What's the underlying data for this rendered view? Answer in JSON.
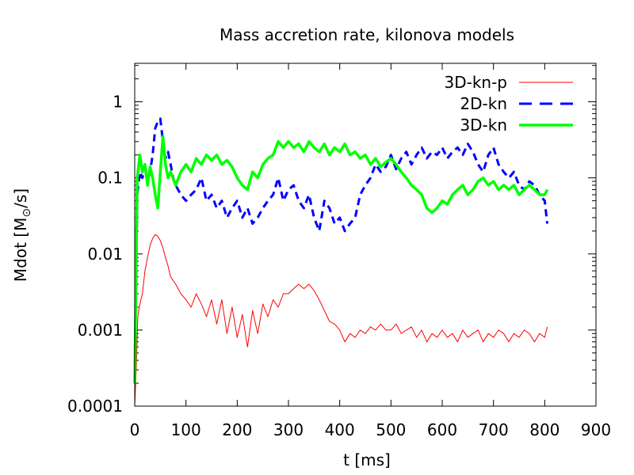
{
  "chart_data": {
    "type": "line",
    "title": "Mass accretion rate, kilonova models",
    "xlabel": "t [ms]",
    "ylabel_prefix": "Mdot [M",
    "ylabel_sub": "⊙",
    "ylabel_suffix": "/s]",
    "xscale": "linear",
    "yscale": "log",
    "xlim": [
      0,
      900
    ],
    "ylim": [
      0.0001,
      3.2
    ],
    "xticks": [
      0,
      100,
      200,
      300,
      400,
      500,
      600,
      700,
      800,
      900
    ],
    "yticks": [
      0.0001,
      0.001,
      0.01,
      0.1,
      1
    ],
    "xtick_labels": [
      "0",
      "100",
      "200",
      "300",
      "400",
      "500",
      "600",
      "700",
      "800",
      "900"
    ],
    "ytick_labels": [
      "0.0001",
      "0.001",
      "0.01",
      "0.1",
      "1"
    ],
    "legend_position": "top-right",
    "series": [
      {
        "name": "3D-kn-p",
        "color": "#ff0000",
        "style": "solid-thin",
        "t": [
          0,
          3,
          6,
          9,
          12,
          15,
          20,
          25,
          30,
          35,
          40,
          45,
          50,
          55,
          60,
          65,
          70,
          80,
          90,
          100,
          110,
          120,
          130,
          140,
          150,
          160,
          170,
          180,
          190,
          200,
          210,
          220,
          230,
          240,
          250,
          260,
          270,
          280,
          290,
          300,
          310,
          320,
          330,
          340,
          350,
          360,
          370,
          380,
          390,
          400,
          410,
          420,
          430,
          440,
          450,
          460,
          470,
          480,
          490,
          500,
          510,
          520,
          530,
          540,
          550,
          560,
          570,
          580,
          590,
          600,
          610,
          620,
          630,
          640,
          650,
          660,
          670,
          680,
          690,
          700,
          710,
          720,
          730,
          740,
          750,
          760,
          770,
          780,
          790,
          800,
          805
        ],
        "values": [
          0.0001,
          0.0003,
          0.0015,
          0.002,
          0.0025,
          0.003,
          0.006,
          0.009,
          0.013,
          0.016,
          0.018,
          0.017,
          0.015,
          0.012,
          0.009,
          0.007,
          0.005,
          0.004,
          0.003,
          0.0025,
          0.002,
          0.003,
          0.0022,
          0.0015,
          0.0025,
          0.0012,
          0.0025,
          0.0009,
          0.002,
          0.0008,
          0.0016,
          0.0006,
          0.0018,
          0.0009,
          0.0022,
          0.0015,
          0.0025,
          0.002,
          0.003,
          0.003,
          0.0035,
          0.004,
          0.0035,
          0.004,
          0.0033,
          0.0025,
          0.0018,
          0.0013,
          0.0012,
          0.001,
          0.0007,
          0.0009,
          0.0008,
          0.001,
          0.0009,
          0.0011,
          0.001,
          0.0012,
          0.001,
          0.001,
          0.0012,
          0.0009,
          0.001,
          0.0011,
          0.0008,
          0.001,
          0.0007,
          0.0009,
          0.0008,
          0.001,
          0.0008,
          0.0009,
          0.0007,
          0.001,
          0.0008,
          0.0009,
          0.001,
          0.0007,
          0.0009,
          0.0008,
          0.001,
          0.0009,
          0.0007,
          0.0009,
          0.0008,
          0.001,
          0.0009,
          0.0007,
          0.0009,
          0.0008,
          0.0011
        ]
      },
      {
        "name": "2D-kn",
        "color": "#0000ff",
        "style": "dashed-thick",
        "t": [
          0,
          5,
          10,
          15,
          20,
          25,
          30,
          35,
          40,
          45,
          50,
          55,
          60,
          65,
          70,
          75,
          80,
          90,
          100,
          110,
          120,
          130,
          140,
          150,
          160,
          170,
          180,
          190,
          200,
          210,
          220,
          230,
          240,
          250,
          260,
          270,
          280,
          290,
          300,
          310,
          320,
          330,
          340,
          350,
          360,
          370,
          380,
          390,
          400,
          410,
          420,
          430,
          440,
          450,
          460,
          470,
          480,
          490,
          500,
          510,
          520,
          530,
          540,
          550,
          560,
          570,
          580,
          590,
          600,
          610,
          620,
          630,
          640,
          650,
          660,
          670,
          680,
          690,
          700,
          710,
          720,
          730,
          740,
          750,
          760,
          770,
          780,
          790,
          800,
          805
        ],
        "values": [
          0.0002,
          0.06,
          0.12,
          0.1,
          0.14,
          0.09,
          0.12,
          0.2,
          0.45,
          0.55,
          0.6,
          0.3,
          0.18,
          0.22,
          0.15,
          0.1,
          0.08,
          0.06,
          0.05,
          0.06,
          0.07,
          0.1,
          0.05,
          0.06,
          0.04,
          0.05,
          0.03,
          0.04,
          0.05,
          0.03,
          0.04,
          0.025,
          0.03,
          0.04,
          0.05,
          0.06,
          0.1,
          0.05,
          0.07,
          0.08,
          0.05,
          0.04,
          0.06,
          0.03,
          0.02,
          0.05,
          0.04,
          0.025,
          0.03,
          0.02,
          0.025,
          0.03,
          0.06,
          0.08,
          0.1,
          0.15,
          0.12,
          0.14,
          0.2,
          0.13,
          0.18,
          0.22,
          0.15,
          0.2,
          0.25,
          0.18,
          0.22,
          0.2,
          0.25,
          0.18,
          0.22,
          0.25,
          0.2,
          0.28,
          0.22,
          0.15,
          0.12,
          0.2,
          0.25,
          0.15,
          0.12,
          0.1,
          0.12,
          0.08,
          0.07,
          0.09,
          0.08,
          0.06,
          0.05,
          0.025
        ]
      },
      {
        "name": "3D-kn",
        "color": "#00ff00",
        "style": "solid-thick",
        "t": [
          0,
          5,
          10,
          15,
          20,
          25,
          30,
          35,
          40,
          45,
          50,
          55,
          60,
          65,
          70,
          80,
          90,
          100,
          110,
          120,
          130,
          140,
          150,
          160,
          170,
          180,
          190,
          200,
          210,
          220,
          230,
          240,
          250,
          260,
          270,
          280,
          290,
          300,
          310,
          320,
          330,
          340,
          350,
          360,
          370,
          380,
          390,
          400,
          410,
          420,
          430,
          440,
          450,
          460,
          470,
          480,
          490,
          500,
          510,
          520,
          530,
          540,
          550,
          560,
          570,
          580,
          590,
          600,
          610,
          620,
          630,
          640,
          650,
          660,
          670,
          680,
          690,
          700,
          710,
          720,
          730,
          740,
          750,
          760,
          770,
          780,
          790,
          800,
          805
        ],
        "values": [
          0.0002,
          0.1,
          0.2,
          0.12,
          0.15,
          0.08,
          0.14,
          0.1,
          0.06,
          0.04,
          0.12,
          0.35,
          0.15,
          0.1,
          0.12,
          0.08,
          0.12,
          0.15,
          0.12,
          0.18,
          0.15,
          0.2,
          0.17,
          0.2,
          0.15,
          0.17,
          0.14,
          0.1,
          0.08,
          0.07,
          0.12,
          0.1,
          0.15,
          0.18,
          0.2,
          0.3,
          0.25,
          0.3,
          0.25,
          0.28,
          0.22,
          0.3,
          0.25,
          0.22,
          0.28,
          0.2,
          0.25,
          0.22,
          0.28,
          0.2,
          0.22,
          0.18,
          0.2,
          0.15,
          0.18,
          0.14,
          0.16,
          0.18,
          0.15,
          0.12,
          0.1,
          0.08,
          0.07,
          0.06,
          0.04,
          0.035,
          0.04,
          0.05,
          0.045,
          0.06,
          0.07,
          0.08,
          0.06,
          0.07,
          0.09,
          0.1,
          0.08,
          0.09,
          0.07,
          0.08,
          0.07,
          0.08,
          0.06,
          0.07,
          0.08,
          0.07,
          0.06,
          0.06,
          0.07
        ]
      }
    ]
  }
}
